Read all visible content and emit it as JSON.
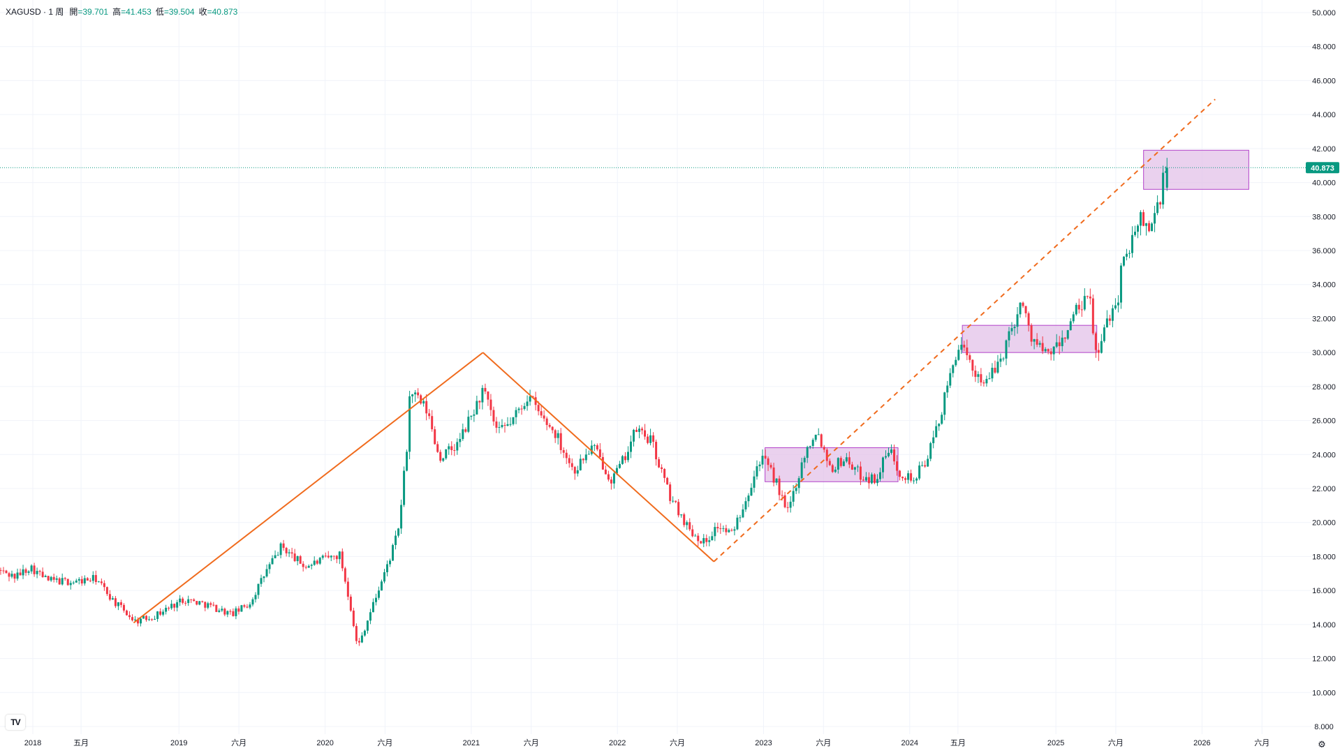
{
  "header": {
    "symbol": "XAGUSD · 1 周",
    "open_label": "開",
    "open_value": "=39.701",
    "high_label": "高",
    "high_value": "=41.453",
    "low_label": "低",
    "low_value": "=39.504",
    "close_label": "收",
    "close_value": "=40.873"
  },
  "colors": {
    "up": "#089981",
    "down": "#f23645",
    "trendline": "#f06b1d",
    "box_fill": "#e1bee7",
    "box_stroke": "#b241c9",
    "price_badge": "#089981",
    "grid": "#f0f3fa",
    "axis_text": "#131722"
  },
  "chart_data": {
    "type": "candlestick",
    "symbol": "XAGUSD",
    "interval": "1 周",
    "ylim": [
      8,
      50
    ],
    "y_ticks": [
      "8.000",
      "10.000",
      "12.000",
      "14.000",
      "16.000",
      "18.000",
      "20.000",
      "22.000",
      "24.000",
      "26.000",
      "28.000",
      "30.000",
      "32.000",
      "34.000",
      "36.000",
      "38.000",
      "40.000",
      "42.000",
      "44.000",
      "46.000",
      "48.000",
      "50.000"
    ],
    "x_ticks": [
      {
        "label": "2018",
        "t": 2018.0
      },
      {
        "label": "五月",
        "t": 2018.33
      },
      {
        "label": "2019",
        "t": 2019.0
      },
      {
        "label": "六月",
        "t": 2019.41
      },
      {
        "label": "2020",
        "t": 2020.0
      },
      {
        "label": "六月",
        "t": 2020.41
      },
      {
        "label": "2021",
        "t": 2021.0
      },
      {
        "label": "六月",
        "t": 2021.41
      },
      {
        "label": "2022",
        "t": 2022.0
      },
      {
        "label": "六月",
        "t": 2022.41
      },
      {
        "label": "2023",
        "t": 2023.0
      },
      {
        "label": "六月",
        "t": 2023.41
      },
      {
        "label": "2024",
        "t": 2024.0
      },
      {
        "label": "五月",
        "t": 2024.33
      },
      {
        "label": "2025",
        "t": 2025.0
      },
      {
        "label": "六月",
        "t": 2025.41
      },
      {
        "label": "2026",
        "t": 2026.0
      },
      {
        "label": "六月",
        "t": 2026.41
      }
    ],
    "last_price": {
      "value": 40.873,
      "label": "40.873"
    },
    "last_bar": {
      "open": 39.701,
      "high": 41.453,
      "low": 39.504,
      "close": 40.873
    },
    "price_path": [
      [
        2017.78,
        17.2
      ],
      [
        2017.9,
        16.8
      ],
      [
        2018.0,
        17.4
      ],
      [
        2018.12,
        16.6
      ],
      [
        2018.3,
        16.5
      ],
      [
        2018.45,
        16.7
      ],
      [
        2018.58,
        15.3
      ],
      [
        2018.72,
        14.2
      ],
      [
        2018.85,
        14.5
      ],
      [
        2019.05,
        15.5
      ],
      [
        2019.2,
        15.2
      ],
      [
        2019.38,
        14.6
      ],
      [
        2019.5,
        15.2
      ],
      [
        2019.62,
        17.2
      ],
      [
        2019.72,
        18.6
      ],
      [
        2019.88,
        17.4
      ],
      [
        2020.0,
        17.8
      ],
      [
        2020.12,
        18.1
      ],
      [
        2020.2,
        14.8
      ],
      [
        2020.24,
        12.6
      ],
      [
        2020.34,
        15.0
      ],
      [
        2020.45,
        17.6
      ],
      [
        2020.52,
        19.5
      ],
      [
        2020.58,
        24.5
      ],
      [
        2020.6,
        27.8
      ],
      [
        2020.72,
        26.5
      ],
      [
        2020.8,
        23.8
      ],
      [
        2020.92,
        24.5
      ],
      [
        2021.05,
        26.8
      ],
      [
        2021.1,
        27.8
      ],
      [
        2021.2,
        25.2
      ],
      [
        2021.3,
        26.0
      ],
      [
        2021.41,
        27.5
      ],
      [
        2021.5,
        26.2
      ],
      [
        2021.6,
        25.2
      ],
      [
        2021.72,
        23.0
      ],
      [
        2021.85,
        24.5
      ],
      [
        2021.98,
        22.5
      ],
      [
        2022.05,
        23.5
      ],
      [
        2022.15,
        25.5
      ],
      [
        2022.25,
        24.8
      ],
      [
        2022.38,
        21.5
      ],
      [
        2022.52,
        19.5
      ],
      [
        2022.62,
        18.8
      ],
      [
        2022.7,
        19.8
      ],
      [
        2022.8,
        19.3
      ],
      [
        2022.9,
        21.5
      ],
      [
        2023.0,
        23.9
      ],
      [
        2023.1,
        22.5
      ],
      [
        2023.18,
        20.5
      ],
      [
        2023.3,
        24.0
      ],
      [
        2023.38,
        25.5
      ],
      [
        2023.48,
        23.2
      ],
      [
        2023.58,
        23.8
      ],
      [
        2023.68,
        22.8
      ],
      [
        2023.78,
        22.5
      ],
      [
        2023.88,
        24.3
      ],
      [
        2023.95,
        23.0
      ],
      [
        2024.05,
        22.5
      ],
      [
        2024.15,
        24.0
      ],
      [
        2024.25,
        27.0
      ],
      [
        2024.35,
        30.5
      ],
      [
        2024.45,
        29.0
      ],
      [
        2024.55,
        28.2
      ],
      [
        2024.65,
        29.8
      ],
      [
        2024.78,
        33.0
      ],
      [
        2024.85,
        31.0
      ],
      [
        2024.95,
        29.8
      ],
      [
        2025.05,
        30.5
      ],
      [
        2025.15,
        32.3
      ],
      [
        2025.25,
        33.2
      ],
      [
        2025.3,
        29.5
      ],
      [
        2025.38,
        32.2
      ],
      [
        2025.44,
        33.0
      ],
      [
        2025.48,
        35.8
      ],
      [
        2025.55,
        36.5
      ],
      [
        2025.6,
        38.0
      ],
      [
        2025.65,
        37.2
      ],
      [
        2025.72,
        38.6
      ],
      [
        2025.77,
        40.873
      ]
    ]
  },
  "annotations": {
    "trend_lines": [
      {
        "style": "solid",
        "from": {
          "t": 2018.69,
          "p": 14.1
        },
        "to": {
          "t": 2021.08,
          "p": 30.0
        }
      },
      {
        "style": "solid",
        "from": {
          "t": 2021.08,
          "p": 30.0
        },
        "to": {
          "t": 2022.66,
          "p": 17.7
        }
      },
      {
        "style": "dashed",
        "from": {
          "t": 2022.66,
          "p": 17.7
        },
        "to": {
          "t": 2026.09,
          "p": 44.9
        }
      }
    ],
    "boxes": [
      {
        "t0": 2023.01,
        "t1": 2023.92,
        "p_top": 24.4,
        "p_bottom": 22.4
      },
      {
        "t0": 2024.36,
        "t1": 2025.28,
        "p_top": 31.6,
        "p_bottom": 30.0
      },
      {
        "t0": 2025.6,
        "t1": 2026.32,
        "p_top": 41.9,
        "p_bottom": 39.6
      }
    ]
  }
}
